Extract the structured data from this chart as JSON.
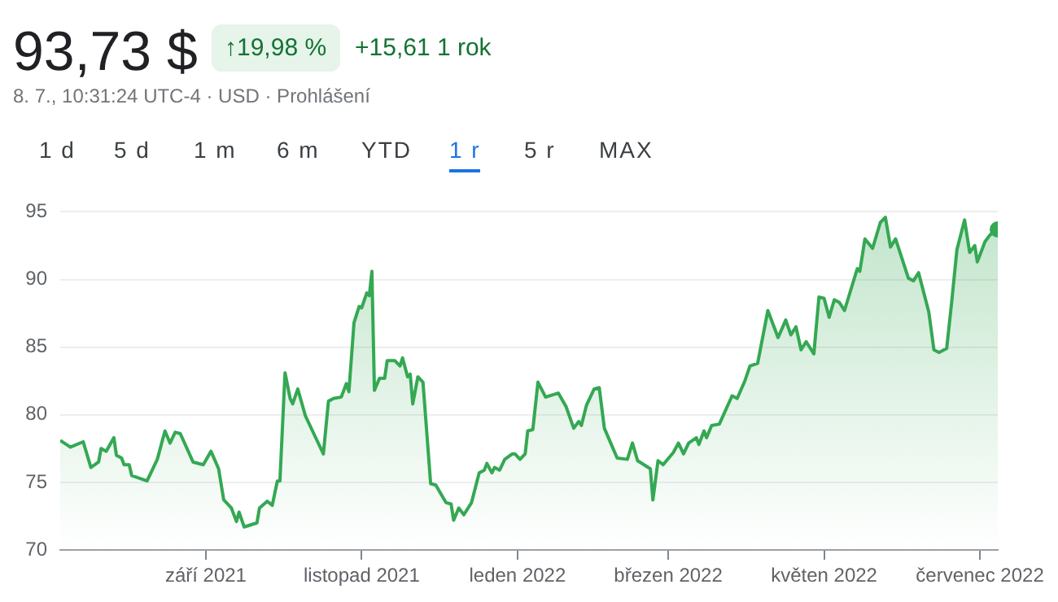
{
  "chart_data": {
    "type": "area",
    "annotations": [
      "93,73 $",
      "↑19,98 %",
      "+15,61 1 rok",
      "8. 7., 10:31:24 UTC-4 · USD · Prohlášení",
      "1 d",
      "5 d",
      "1 m",
      "6 m",
      "YTD",
      "1 r",
      "5 r",
      "MAX"
    ],
    "x": [
      "2021-07-06",
      "2021-07-10",
      "2021-07-15",
      "2021-07-18",
      "2021-07-21",
      "2021-07-22",
      "2021-07-24",
      "2021-07-27",
      "2021-07-28",
      "2021-07-30",
      "2021-07-31",
      "2021-08-02",
      "2021-08-03",
      "2021-08-09",
      "2021-08-13",
      "2021-08-16",
      "2021-08-18",
      "2021-08-20",
      "2021-08-22",
      "2021-08-27",
      "2021-08-31",
      "2021-09-03",
      "2021-09-06",
      "2021-09-08",
      "2021-09-11",
      "2021-09-13",
      "2021-09-14",
      "2021-09-16",
      "2021-09-21",
      "2021-09-22",
      "2021-09-25",
      "2021-09-27",
      "2021-09-29",
      "2021-09-30",
      "2021-10-02",
      "2021-10-04",
      "2021-10-05",
      "2021-10-07",
      "2021-10-10",
      "2021-10-14",
      "2021-10-17",
      "2021-10-19",
      "2021-10-21",
      "2021-10-24",
      "2021-10-26",
      "2021-10-27",
      "2021-10-29",
      "2021-10-31",
      "2021-11-01",
      "2021-11-03",
      "2021-11-04",
      "2021-11-05",
      "2021-11-06",
      "2021-11-08",
      "2021-11-10",
      "2021-11-11",
      "2021-11-14",
      "2021-11-16",
      "2021-11-17",
      "2021-11-19",
      "2021-11-20",
      "2021-11-21",
      "2021-11-23",
      "2021-11-25",
      "2021-11-28",
      "2021-11-30",
      "2021-12-04",
      "2021-12-06",
      "2021-12-07",
      "2021-12-09",
      "2021-12-11",
      "2021-12-14",
      "2021-12-17",
      "2021-12-19",
      "2021-12-20",
      "2021-12-22",
      "2021-12-23",
      "2021-12-25",
      "2021-12-27",
      "2021-12-30",
      "2021-12-31",
      "2022-01-02",
      "2022-01-04",
      "2022-01-05",
      "2022-01-07",
      "2022-01-09",
      "2022-01-12",
      "2022-01-17",
      "2022-01-20",
      "2022-01-23",
      "2022-01-25",
      "2022-01-26",
      "2022-01-28",
      "2022-01-31",
      "2022-02-02",
      "2022-02-04",
      "2022-02-09",
      "2022-02-13",
      "2022-02-15",
      "2022-02-17",
      "2022-02-22",
      "2022-02-23",
      "2022-02-25",
      "2022-02-27",
      "2022-03-03",
      "2022-03-05",
      "2022-03-07",
      "2022-03-09",
      "2022-03-12",
      "2022-03-13",
      "2022-03-15",
      "2022-03-16",
      "2022-03-18",
      "2022-03-21",
      "2022-03-26",
      "2022-03-28",
      "2022-03-31",
      "2022-04-02",
      "2022-04-05",
      "2022-04-09",
      "2022-04-13",
      "2022-04-16",
      "2022-04-18",
      "2022-04-20",
      "2022-04-22",
      "2022-04-24",
      "2022-04-27",
      "2022-04-29",
      "2022-05-01",
      "2022-05-03",
      "2022-05-05",
      "2022-05-07",
      "2022-05-09",
      "2022-05-14",
      "2022-05-15",
      "2022-05-17",
      "2022-05-20",
      "2022-05-23",
      "2022-05-25",
      "2022-05-27",
      "2022-05-29",
      "2022-06-03",
      "2022-06-05",
      "2022-06-07",
      "2022-06-11",
      "2022-06-13",
      "2022-06-15",
      "2022-06-18",
      "2022-06-20",
      "2022-06-22",
      "2022-06-25",
      "2022-06-27",
      "2022-06-29",
      "2022-06-30",
      "2022-07-03",
      "2022-07-05",
      "2022-07-08"
    ],
    "series": [
      {
        "color": "#34a853",
        "values": [
          78.1,
          77.6,
          78.0,
          76.1,
          76.5,
          77.5,
          77.3,
          78.3,
          77.0,
          76.8,
          76.3,
          76.3,
          75.5,
          75.1,
          76.7,
          78.8,
          77.9,
          78.7,
          78.6,
          76.5,
          76.3,
          77.3,
          76.0,
          73.7,
          73.1,
          72.1,
          72.8,
          71.7,
          72.0,
          73.1,
          73.6,
          73.3,
          75.1,
          75.1,
          83.1,
          81.2,
          80.8,
          81.9,
          79.9,
          78.3,
          77.1,
          81.0,
          81.2,
          81.3,
          82.3,
          81.7,
          86.8,
          88.0,
          87.9,
          89.0,
          88.8,
          90.6,
          81.8,
          82.7,
          82.7,
          84.0,
          84.0,
          83.6,
          84.2,
          82.8,
          83.0,
          80.8,
          82.8,
          82.4,
          74.9,
          74.8,
          73.5,
          73.4,
          72.2,
          73.1,
          72.6,
          73.5,
          75.7,
          75.9,
          76.4,
          75.7,
          76.1,
          75.9,
          76.7,
          77.1,
          77.1,
          76.7,
          77.1,
          78.8,
          78.9,
          82.4,
          81.3,
          81.6,
          80.6,
          79.0,
          79.5,
          79.2,
          80.7,
          81.9,
          82.0,
          79.0,
          76.8,
          76.7,
          77.9,
          76.6,
          76.0,
          73.7,
          76.6,
          76.3,
          77.2,
          77.9,
          77.1,
          77.9,
          78.3,
          77.8,
          78.8,
          78.3,
          79.2,
          79.3,
          81.4,
          81.2,
          82.5,
          83.6,
          83.8,
          87.7,
          85.7,
          87.0,
          85.9,
          86.5,
          84.8,
          85.4,
          84.5,
          88.7,
          88.6,
          87.2,
          88.5,
          88.3,
          87.7,
          90.8,
          90.6,
          93.0,
          92.3,
          94.2,
          94.6,
          92.4,
          93.0,
          90.1,
          89.9,
          90.5,
          87.6,
          84.8,
          84.6,
          84.9,
          88.4,
          92.2,
          94.4,
          92.0,
          92.5,
          91.3,
          92.8,
          93.3,
          93.7
        ]
      }
    ],
    "xlim": [
      "2021-07-06",
      "2022-07-08"
    ],
    "xticks": [
      {
        "value": "2021-09-01",
        "label": "září 2021"
      },
      {
        "value": "2021-11-01",
        "label": "listopad 2021"
      },
      {
        "value": "2022-01-01",
        "label": "leden 2022"
      },
      {
        "value": "2022-03-01",
        "label": "březen 2022"
      },
      {
        "value": "2022-05-01",
        "label": "květen 2022"
      },
      {
        "value": "2022-07-01",
        "label": "červenec 2022"
      }
    ],
    "ylim": [
      70,
      95
    ],
    "yticks": [
      70,
      75,
      80,
      85,
      90,
      95
    ],
    "grid": "y"
  }
}
